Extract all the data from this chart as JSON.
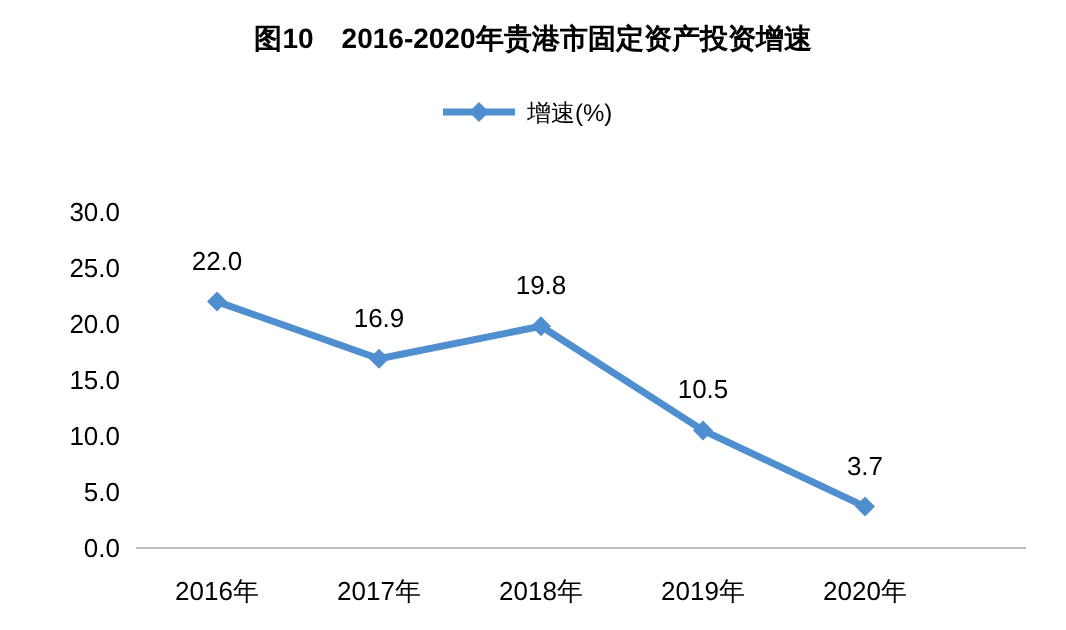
{
  "chart_data": {
    "type": "line",
    "title": "图10　2016-2020年贵港市固定资产投资增速",
    "categories": [
      "2016年",
      "2017年",
      "2018年",
      "2019年",
      "2020年"
    ],
    "series": [
      {
        "name": "增速(%)",
        "color": "#4f8fd0",
        "values": [
          22.0,
          16.9,
          19.8,
          10.5,
          3.7
        ],
        "value_labels": [
          "22.0",
          "16.9",
          "19.8",
          "10.5",
          "3.7"
        ]
      }
    ],
    "ylim": [
      0,
      30
    ],
    "yticks": [
      {
        "value": 0,
        "label": "0.0"
      },
      {
        "value": 5,
        "label": "5.0"
      },
      {
        "value": 10,
        "label": "10.0"
      },
      {
        "value": 15,
        "label": "15.0"
      },
      {
        "value": 20,
        "label": "20.0"
      },
      {
        "value": 25,
        "label": "25.0"
      },
      {
        "value": 30,
        "label": "30.0"
      }
    ],
    "grid": false,
    "legend": "top",
    "marker": "diamond",
    "line_style": "solid"
  }
}
